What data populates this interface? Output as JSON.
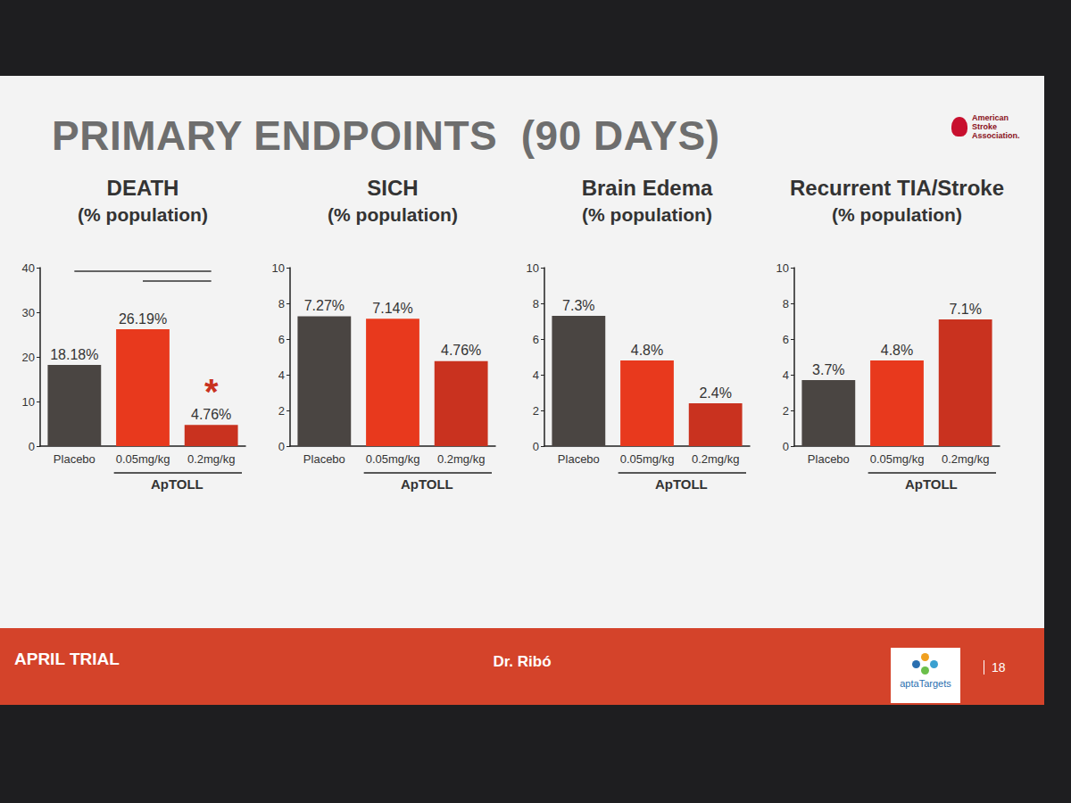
{
  "slide": {
    "title": "PRIMARY ENDPOINTS  (90 DAYS)",
    "logo_text": "American Stroke Association.",
    "footer_left": "APRIL TRIAL",
    "footer_center": "Dr. Ribó",
    "footer_logo": "aptaTargets",
    "page_number": "18"
  },
  "chart_data": [
    {
      "type": "bar",
      "title": "DEATH",
      "subtitle": "(% population)",
      "categories": [
        "Placebo",
        "0.05mg/kg",
        "0.2mg/kg"
      ],
      "group_label": "ApTOLL",
      "values": [
        18.18,
        26.19,
        4.76
      ],
      "value_labels": [
        "18.18%",
        "26.19%",
        "4.76%"
      ],
      "colors": [
        "#4a4542",
        "#e8391d",
        "#c9321f"
      ],
      "ylim": [
        0,
        40
      ],
      "yticks": [
        0,
        10,
        20,
        30,
        40
      ],
      "grid": false,
      "data_labels": true,
      "annotation": {
        "text": "*",
        "category": "0.2mg/kg"
      }
    },
    {
      "type": "bar",
      "title": "SICH",
      "subtitle": "(% population)",
      "categories": [
        "Placebo",
        "0.05mg/kg",
        "0.2mg/kg"
      ],
      "group_label": "ApTOLL",
      "values": [
        7.27,
        7.14,
        4.76
      ],
      "value_labels": [
        "7.27%",
        "7.14%",
        "4.76%"
      ],
      "colors": [
        "#4a4542",
        "#e8391d",
        "#c9321f"
      ],
      "ylim": [
        0,
        10
      ],
      "yticks": [
        0,
        2,
        4,
        6,
        8,
        10
      ],
      "grid": false,
      "data_labels": true
    },
    {
      "type": "bar",
      "title": "Brain Edema",
      "subtitle": "(% population)",
      "categories": [
        "Placebo",
        "0.05mg/kg",
        "0.2mg/kg"
      ],
      "group_label": "ApTOLL",
      "values": [
        7.3,
        4.8,
        2.4
      ],
      "value_labels": [
        "7.3%",
        "4.8%",
        "2.4%"
      ],
      "colors": [
        "#4a4542",
        "#e8391d",
        "#c9321f"
      ],
      "ylim": [
        0,
        10
      ],
      "yticks": [
        0,
        2,
        4,
        6,
        8,
        10
      ],
      "grid": false,
      "data_labels": true
    },
    {
      "type": "bar",
      "title": "Recurrent TIA/Stroke",
      "subtitle": "(% population)",
      "categories": [
        "Placebo",
        "0.05mg/kg",
        "0.2mg/kg"
      ],
      "group_label": "ApTOLL",
      "values": [
        3.7,
        4.8,
        7.1
      ],
      "value_labels": [
        "3.7%",
        "4.8%",
        "7.1%"
      ],
      "colors": [
        "#4a4542",
        "#e8391d",
        "#c9321f"
      ],
      "ylim": [
        0,
        10
      ],
      "yticks": [
        0,
        2,
        4,
        6,
        8,
        10
      ],
      "grid": false,
      "data_labels": true
    }
  ]
}
